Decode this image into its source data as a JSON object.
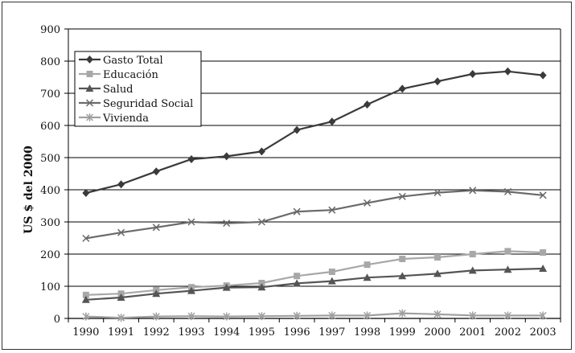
{
  "chart_data": {
    "type": "line",
    "ylabel": "US $ del 2000",
    "xlabel": "",
    "ylim": [
      0,
      900
    ],
    "yticks": [
      0,
      100,
      200,
      300,
      400,
      500,
      600,
      700,
      800,
      900
    ],
    "grid": true,
    "legend_position": "top-left",
    "categories": [
      "1990",
      "1991",
      "1992",
      "1993",
      "1994",
      "1995",
      "1996",
      "1997",
      "1998",
      "1999",
      "2000",
      "2001",
      "2002",
      "2003"
    ],
    "series": [
      {
        "name": "Gasto Total",
        "marker": "diamond",
        "color": "#3a3a3a",
        "values": [
          390,
          417,
          457,
          495,
          504,
          519,
          586,
          612,
          665,
          714,
          737,
          760,
          768,
          756
        ]
      },
      {
        "name": "Educación",
        "marker": "square",
        "color": "#a8a8a8",
        "values": [
          73,
          77,
          88,
          97,
          102,
          110,
          132,
          145,
          167,
          185,
          190,
          200,
          209,
          205
        ]
      },
      {
        "name": "Salud",
        "marker": "triangle",
        "color": "#555555",
        "values": [
          58,
          65,
          77,
          86,
          96,
          97,
          109,
          116,
          127,
          132,
          139,
          149,
          152,
          155
        ]
      },
      {
        "name": "Seguridad Social",
        "marker": "x",
        "color": "#6a6a6a",
        "values": [
          249,
          267,
          283,
          300,
          296,
          300,
          332,
          337,
          359,
          379,
          391,
          398,
          394,
          383
        ]
      },
      {
        "name": "Vivienda",
        "marker": "star",
        "color": "#a0a0a0",
        "values": [
          6,
          2,
          6,
          7,
          6,
          7,
          8,
          9,
          9,
          16,
          13,
          9,
          9,
          9
        ]
      }
    ]
  }
}
